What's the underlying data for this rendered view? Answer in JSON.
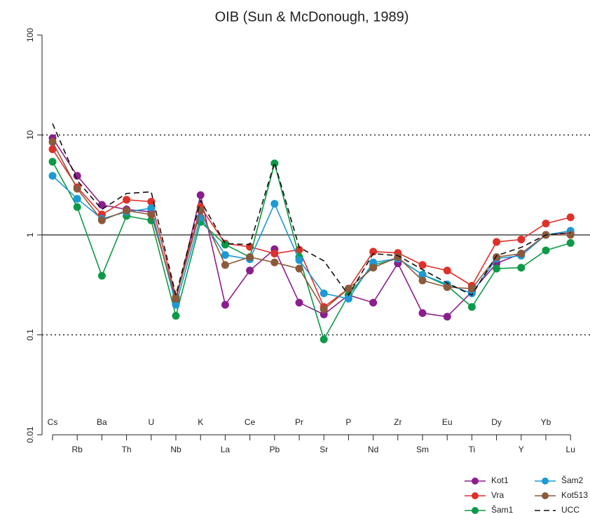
{
  "chart_data": {
    "type": "line",
    "title": "OIB (Sun & McDonough, 1989)",
    "categories": [
      "Cs",
      "Rb",
      "Ba",
      "Th",
      "U",
      "Nb",
      "K",
      "La",
      "Ce",
      "Pb",
      "Pr",
      "Sr",
      "P",
      "Nd",
      "Zr",
      "Sm",
      "Eu",
      "Ti",
      "Dy",
      "Y",
      "Yb",
      "Lu"
    ],
    "log_scale": true,
    "ylim": [
      0.01,
      100
    ],
    "yticks": [
      0.01,
      0.1,
      1,
      10,
      100
    ],
    "hlines": [
      {
        "value": 10,
        "style": "dotted"
      },
      {
        "value": 1,
        "style": "solid"
      },
      {
        "value": 0.1,
        "style": "dotted"
      }
    ],
    "legend": "bottom-right",
    "series": [
      {
        "name": "Kot1",
        "color": "#8b1e8e",
        "style": "solid",
        "markers": true,
        "values": [
          9.3,
          3.9,
          2.0,
          1.8,
          1.7,
          0.22,
          2.5,
          0.2,
          0.44,
          0.72,
          0.21,
          0.16,
          0.25,
          0.21,
          0.52,
          0.165,
          0.152,
          0.27,
          0.52,
          0.65,
          1.0,
          1.05
        ]
      },
      {
        "name": "Vra",
        "color": "#e0302a",
        "style": "solid",
        "markers": true,
        "values": [
          7.2,
          3.0,
          1.6,
          2.25,
          2.15,
          0.24,
          1.9,
          0.82,
          0.76,
          0.65,
          0.71,
          0.19,
          0.29,
          0.68,
          0.66,
          0.5,
          0.44,
          0.31,
          0.85,
          0.9,
          1.3,
          1.5
        ]
      },
      {
        "name": "Šam1",
        "color": "#0c9a48",
        "style": "solid",
        "markers": true,
        "values": [
          5.4,
          1.9,
          0.39,
          1.55,
          1.4,
          0.155,
          1.35,
          0.8,
          0.6,
          5.2,
          0.6,
          0.09,
          0.25,
          0.5,
          0.58,
          0.4,
          0.31,
          0.19,
          0.46,
          0.47,
          0.7,
          0.83
        ]
      },
      {
        "name": "Šam2",
        "color": "#1b9ad6",
        "style": "solid",
        "markers": true,
        "values": [
          3.9,
          2.3,
          1.45,
          1.7,
          1.85,
          0.2,
          1.5,
          0.63,
          0.57,
          2.05,
          0.56,
          0.26,
          0.23,
          0.53,
          0.58,
          0.4,
          0.32,
          0.26,
          0.58,
          0.62,
          1.0,
          1.1
        ]
      },
      {
        "name": "Kot513",
        "color": "#8b5a3c",
        "style": "solid",
        "markers": true,
        "values": [
          8.5,
          2.9,
          1.4,
          1.75,
          1.6,
          0.23,
          1.75,
          0.5,
          0.6,
          0.53,
          0.46,
          0.18,
          0.29,
          0.47,
          0.6,
          0.35,
          0.3,
          0.29,
          0.6,
          0.65,
          1.0,
          1.0
        ]
      },
      {
        "name": "UCC",
        "color": "#111111",
        "style": "dashed",
        "markers": false,
        "values": [
          13,
          3.5,
          1.8,
          2.6,
          2.7,
          0.25,
          2.2,
          0.82,
          0.8,
          5.3,
          0.75,
          0.55,
          0.25,
          0.65,
          0.62,
          0.45,
          0.33,
          0.25,
          0.62,
          0.75,
          1.0,
          1.05
        ]
      }
    ]
  }
}
